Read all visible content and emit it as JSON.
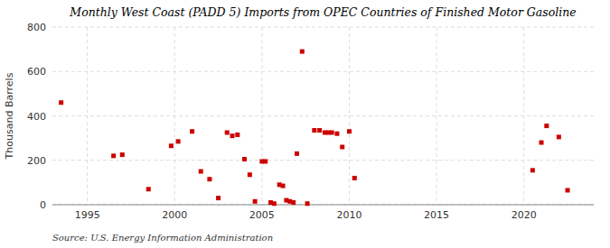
{
  "chart_data": {
    "type": "scatter",
    "title": "Monthly West Coast (PADD 5) Imports from OPEC Countries of Finished Motor Gasoline",
    "ylabel": "Thousand Barrels",
    "annotations": [
      "Source: U.S. Energy Information Administration"
    ],
    "color": "#cc0000",
    "marker": "square",
    "grid": true,
    "xlim": [
      1993.0,
      2024.0
    ],
    "xticks": [
      1995,
      2000,
      2005,
      2010,
      2015,
      2020
    ],
    "ylim": [
      0,
      800
    ],
    "yticks": [
      0,
      200,
      400,
      600,
      800
    ],
    "x": [
      1993.5,
      1996.5,
      1997.0,
      1998.5,
      1999.8,
      2000.2,
      2001.0,
      2001.5,
      2002.0,
      2002.5,
      2003.0,
      2003.3,
      2003.6,
      2004.0,
      2004.3,
      2004.6,
      2005.0,
      2005.2,
      2005.5,
      2005.7,
      2006.0,
      2006.2,
      2006.4,
      2006.6,
      2006.8,
      2007.0,
      2007.3,
      2007.6,
      2008.0,
      2008.3,
      2008.6,
      2008.8,
      2009.0,
      2009.3,
      2009.6,
      2010.0,
      2010.3,
      2020.5,
      2021.0,
      2021.3,
      2022.0,
      2022.5
    ],
    "values": [
      460,
      220,
      225,
      70,
      265,
      285,
      330,
      150,
      115,
      30,
      325,
      310,
      315,
      205,
      135,
      15,
      195,
      195,
      10,
      5,
      90,
      85,
      20,
      15,
      10,
      230,
      690,
      5,
      335,
      335,
      325,
      325,
      325,
      320,
      260,
      330,
      120,
      155,
      280,
      355,
      305,
      65
    ]
  }
}
